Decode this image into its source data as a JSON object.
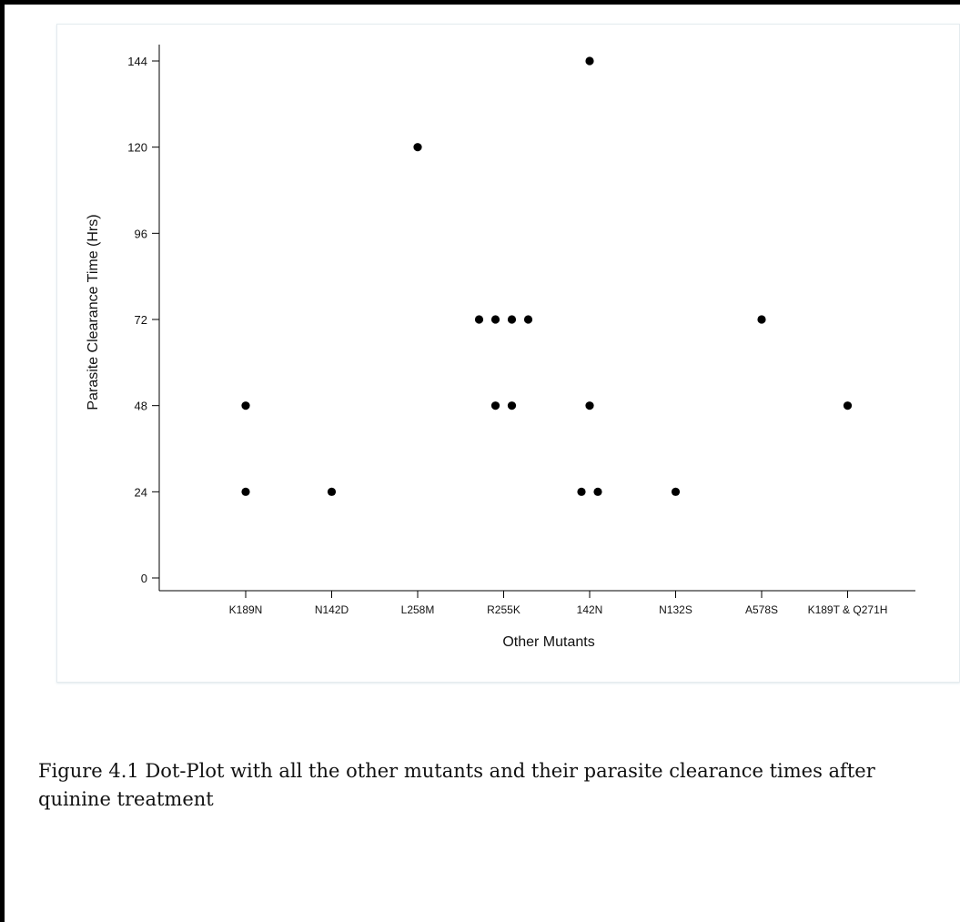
{
  "chart_data": {
    "type": "scatter",
    "title": "",
    "xlabel": "Other Mutants",
    "ylabel": "Parasite Clearance Time (Hrs)",
    "ylim": [
      0,
      144
    ],
    "yticks": [
      0,
      24,
      48,
      72,
      96,
      120,
      144
    ],
    "categories": [
      "K189N",
      "N142D",
      "L258M",
      "R255K",
      "142N",
      "N132S",
      "A578S",
      "K189T & Q271H"
    ],
    "grid": false,
    "legend": "none",
    "marker_color": "#000000",
    "points": [
      {
        "category": "K189N",
        "y": 48
      },
      {
        "category": "K189N",
        "y": 24
      },
      {
        "category": "N142D",
        "y": 24
      },
      {
        "category": "L258M",
        "y": 120
      },
      {
        "category": "R255K",
        "y": 72
      },
      {
        "category": "R255K",
        "y": 72
      },
      {
        "category": "R255K",
        "y": 72
      },
      {
        "category": "R255K",
        "y": 72
      },
      {
        "category": "R255K",
        "y": 48
      },
      {
        "category": "R255K",
        "y": 48
      },
      {
        "category": "142N",
        "y": 144
      },
      {
        "category": "142N",
        "y": 48
      },
      {
        "category": "142N",
        "y": 24
      },
      {
        "category": "142N",
        "y": 24
      },
      {
        "category": "N132S",
        "y": 24
      },
      {
        "category": "A578S",
        "y": 72
      },
      {
        "category": "K189T & Q271H",
        "y": 48
      }
    ]
  },
  "caption": "Figure 4.1 Dot-Plot with all the other mutants and their parasite clearance times after quinine treatment"
}
